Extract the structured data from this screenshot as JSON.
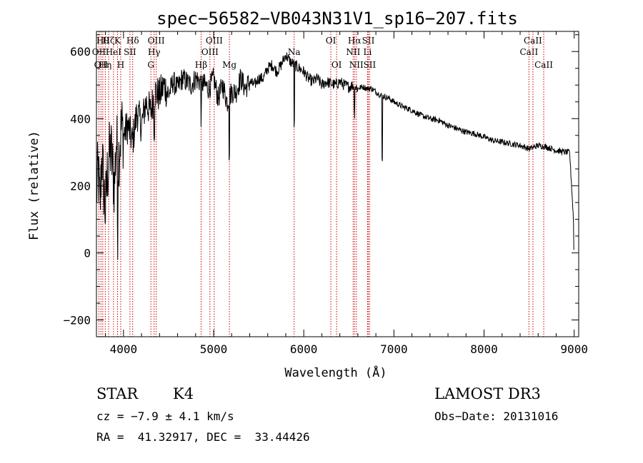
{
  "chart_data": {
    "type": "line",
    "title": "spec−56582−VB043N31V1_sp16−207.fits",
    "xlabel": "Wavelength (Å)",
    "ylabel": "Flux (relative)",
    "xlim": [
      3700,
      9050
    ],
    "ylim": [
      -250,
      660
    ],
    "xticks": [
      4000,
      5000,
      6000,
      7000,
      8000,
      9000
    ],
    "yticks": [
      -200,
      0,
      200,
      400,
      600
    ],
    "xtick_labels": [
      "4000",
      "5000",
      "6000",
      "7000",
      "8000",
      "9000"
    ],
    "ytick_labels": [
      "−200",
      "0",
      "200",
      "400",
      "600"
    ],
    "series": [
      {
        "name": "flux",
        "x": [
          3700,
          3720,
          3740,
          3760,
          3780,
          3800,
          3820,
          3840,
          3860,
          3880,
          3900,
          3920,
          3940,
          3960,
          3980,
          4000,
          4050,
          4100,
          4150,
          4200,
          4250,
          4300,
          4350,
          4400,
          4450,
          4500,
          4550,
          4600,
          4650,
          4700,
          4750,
          4800,
          4850,
          4900,
          4950,
          5000,
          5050,
          5100,
          5150,
          5200,
          5250,
          5300,
          5350,
          5400,
          5450,
          5500,
          5550,
          5600,
          5650,
          5700,
          5750,
          5800,
          5850,
          5900,
          5950,
          6000,
          6050,
          6100,
          6150,
          6200,
          6250,
          6300,
          6350,
          6400,
          6450,
          6500,
          6550,
          6600,
          6650,
          6700,
          6750,
          6800,
          6850,
          6900,
          6950,
          7000,
          7100,
          7200,
          7300,
          7400,
          7500,
          7600,
          7700,
          7800,
          7900,
          8000,
          8100,
          8200,
          8300,
          8400,
          8500,
          8600,
          8700,
          8800,
          8900,
          8950,
          9000
        ],
        "values": [
          180,
          250,
          130,
          300,
          200,
          120,
          230,
          280,
          310,
          250,
          200,
          340,
          270,
          330,
          380,
          350,
          380,
          330,
          420,
          380,
          450,
          420,
          480,
          470,
          500,
          470,
          510,
          490,
          520,
          510,
          500,
          520,
          510,
          500,
          490,
          520,
          460,
          500,
          450,
          480,
          480,
          520,
          490,
          510,
          500,
          520,
          520,
          550,
          560,
          540,
          560,
          590,
          570,
          560,
          550,
          540,
          520,
          510,
          520,
          500,
          510,
          505,
          500,
          510,
          500,
          495,
          500,
          490,
          495,
          490,
          490,
          480,
          470,
          465,
          460,
          450,
          435,
          425,
          410,
          400,
          395,
          380,
          370,
          360,
          355,
          345,
          335,
          330,
          325,
          320,
          310,
          320,
          315,
          305,
          300,
          300,
          60
        ]
      }
    ],
    "absorption_dips": [
      {
        "x": 3934,
        "depth": 200
      },
      {
        "x": 4340,
        "depth": 90
      },
      {
        "x": 4862,
        "depth": 100
      },
      {
        "x": 5175,
        "depth": 160
      },
      {
        "x": 5893,
        "depth": 180
      },
      {
        "x": 6563,
        "depth": 80
      },
      {
        "x": 6870,
        "depth": 190
      }
    ],
    "line_markers": [
      {
        "x": 3727,
        "label": "OII",
        "row": 2
      },
      {
        "x": 3750,
        "label": "OII",
        "row": 3
      },
      {
        "x": 3770,
        "label": "Hθ",
        "row": 1
      },
      {
        "x": 3798,
        "label": "Hη",
        "row": 3
      },
      {
        "x": 3835,
        "label": "Hζ",
        "row": 1
      },
      {
        "x": 3889,
        "label": "HeI",
        "row": 2
      },
      {
        "x": 3934,
        "label": "K",
        "row": 1
      },
      {
        "x": 3969,
        "label": "H",
        "row": 3
      },
      {
        "x": 4072,
        "label": "SII",
        "row": 2
      },
      {
        "x": 4102,
        "label": "Hδ",
        "row": 1
      },
      {
        "x": 4304,
        "label": "G",
        "row": 3
      },
      {
        "x": 4340,
        "label": "Hγ",
        "row": 2
      },
      {
        "x": 4363,
        "label": "OIII",
        "row": 1
      },
      {
        "x": 4861,
        "label": "Hβ",
        "row": 3
      },
      {
        "x": 4959,
        "label": "OIII",
        "row": 2
      },
      {
        "x": 5007,
        "label": "OIII",
        "row": 1
      },
      {
        "x": 5175,
        "label": "Mg",
        "row": 3
      },
      {
        "x": 5893,
        "label": "Na",
        "row": 2
      },
      {
        "x": 6300,
        "label": "OI",
        "row": 1
      },
      {
        "x": 6364,
        "label": "OI",
        "row": 3
      },
      {
        "x": 6548,
        "label": "NII",
        "row": 2
      },
      {
        "x": 6563,
        "label": "Hα",
        "row": 1
      },
      {
        "x": 6583,
        "label": "NII",
        "row": 3
      },
      {
        "x": 6707,
        "label": "Li",
        "row": 2
      },
      {
        "x": 6716,
        "label": "SII",
        "row": 1
      },
      {
        "x": 6731,
        "label": "SII",
        "row": 3
      },
      {
        "x": 8498,
        "label": "CaII",
        "row": 2
      },
      {
        "x": 8542,
        "label": "CaII",
        "row": 1
      },
      {
        "x": 8662,
        "label": "CaII",
        "row": 3
      }
    ],
    "marker_color": "#cc0000",
    "line_color": "#000000"
  },
  "info": {
    "object_class": "STAR",
    "subclass": "K4",
    "survey": "LAMOST DR3",
    "cz": "cz = −7.9 ± 4.1 km/s",
    "obs_date": "Obs−Date: 20131016",
    "coords": "RA =  41.32917, DEC =  33.44426"
  }
}
